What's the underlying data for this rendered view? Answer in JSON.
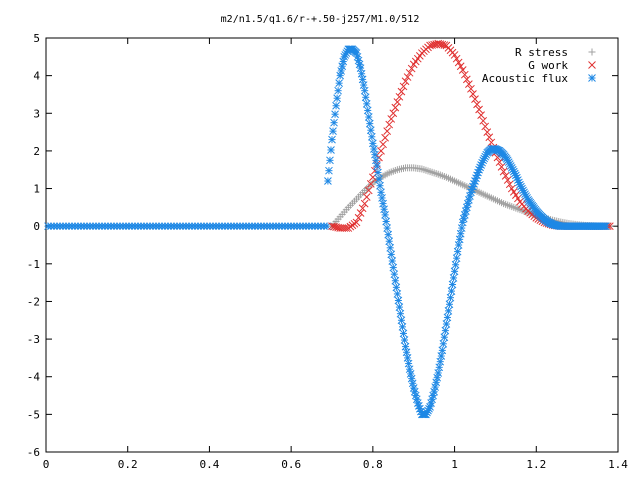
{
  "chart_data": {
    "type": "scatter",
    "title": "m2/n1.5/q1.6/r-+.50-j257/M1.0/512",
    "xlabel": "",
    "ylabel": "",
    "xlim": [
      0,
      1.4
    ],
    "ylim": [
      -6,
      5
    ],
    "xticks": [
      "0",
      "0.2",
      "0.4",
      "0.6",
      "0.8",
      "1",
      "1.2",
      "1.4"
    ],
    "yticks": [
      "-6",
      "-5",
      "-4",
      "-3",
      "-2",
      "-1",
      "0",
      "1",
      "2",
      "3",
      "4",
      "5"
    ],
    "grid": false,
    "legend_position": "top-right",
    "series": [
      {
        "name": "R stress",
        "marker": "plus",
        "color": "#a0a0a0",
        "x": [
          0.7,
          0.72,
          0.74,
          0.76,
          0.78,
          0.8,
          0.82,
          0.84,
          0.86,
          0.88,
          0.9,
          0.92,
          0.94,
          0.96,
          0.98,
          1.0,
          1.02,
          1.04,
          1.06,
          1.08,
          1.1,
          1.12,
          1.14,
          1.16,
          1.18,
          1.2,
          1.22,
          1.24,
          1.26,
          1.28,
          1.3,
          1.32,
          1.34,
          1.36,
          1.38
        ],
        "y": [
          0.0,
          0.25,
          0.5,
          0.72,
          0.95,
          1.15,
          1.3,
          1.42,
          1.5,
          1.55,
          1.55,
          1.52,
          1.45,
          1.38,
          1.3,
          1.2,
          1.1,
          1.0,
          0.9,
          0.8,
          0.7,
          0.6,
          0.52,
          0.44,
          0.36,
          0.28,
          0.22,
          0.16,
          0.11,
          0.07,
          0.04,
          0.02,
          0.01,
          0.0,
          0.0
        ]
      },
      {
        "name": "G work",
        "marker": "cross",
        "color": "#e03030",
        "x": [
          0.7,
          0.72,
          0.74,
          0.76,
          0.78,
          0.8,
          0.82,
          0.84,
          0.86,
          0.88,
          0.9,
          0.92,
          0.94,
          0.96,
          0.98,
          1.0,
          1.02,
          1.04,
          1.06,
          1.08,
          1.1,
          1.12,
          1.14,
          1.16,
          1.18,
          1.2,
          1.22,
          1.24,
          1.26,
          1.28,
          1.3,
          1.32,
          1.34,
          1.36,
          1.38
        ],
        "y": [
          0.0,
          -0.05,
          -0.05,
          0.1,
          0.6,
          1.3,
          2.0,
          2.7,
          3.3,
          3.85,
          4.3,
          4.6,
          4.8,
          4.85,
          4.8,
          4.55,
          4.15,
          3.65,
          3.1,
          2.5,
          1.95,
          1.45,
          1.0,
          0.65,
          0.4,
          0.22,
          0.1,
          0.03,
          0.0,
          0.0,
          0.0,
          0.0,
          0.0,
          0.0,
          0.0
        ]
      },
      {
        "name": "Acoustic flux",
        "marker": "star",
        "color": "#1e88e5",
        "x": [
          0.69,
          0.7,
          0.71,
          0.72,
          0.73,
          0.74,
          0.75,
          0.76,
          0.77,
          0.78,
          0.79,
          0.8,
          0.81,
          0.82,
          0.83,
          0.84,
          0.85,
          0.86,
          0.87,
          0.88,
          0.89,
          0.9,
          0.91,
          0.92,
          0.93,
          0.94,
          0.95,
          0.96,
          0.97,
          0.98,
          0.99,
          1.0,
          1.01,
          1.02,
          1.03,
          1.04,
          1.05,
          1.06,
          1.07,
          1.08,
          1.09,
          1.1,
          1.11,
          1.12,
          1.13,
          1.14,
          1.15,
          1.16,
          1.17,
          1.18,
          1.19,
          1.2,
          1.21,
          1.22,
          1.23,
          1.24,
          1.25,
          1.26,
          1.27,
          1.28,
          1.29,
          1.3,
          1.31,
          1.32,
          1.33,
          1.34,
          1.35,
          1.36,
          1.37
        ],
        "y": [
          1.2,
          2.3,
          3.2,
          4.0,
          4.5,
          4.7,
          4.7,
          4.6,
          4.2,
          3.6,
          2.9,
          2.2,
          1.6,
          0.9,
          0.3,
          -0.4,
          -1.1,
          -1.8,
          -2.5,
          -3.2,
          -3.8,
          -4.3,
          -4.7,
          -5.0,
          -5.0,
          -4.8,
          -4.4,
          -3.9,
          -3.3,
          -2.6,
          -1.9,
          -1.2,
          -0.5,
          0.1,
          0.5,
          0.9,
          1.2,
          1.5,
          1.75,
          1.95,
          2.05,
          2.05,
          2.0,
          1.9,
          1.75,
          1.55,
          1.35,
          1.1,
          0.9,
          0.7,
          0.55,
          0.4,
          0.28,
          0.18,
          0.1,
          0.05,
          0.02,
          0.0,
          0.0,
          0.0,
          0.0,
          0.0,
          0.0,
          0.0,
          0.0,
          0.0,
          0.0,
          0.0,
          0.0
        ],
        "zero_line_x": [
          0.0,
          0.69
        ]
      }
    ]
  }
}
